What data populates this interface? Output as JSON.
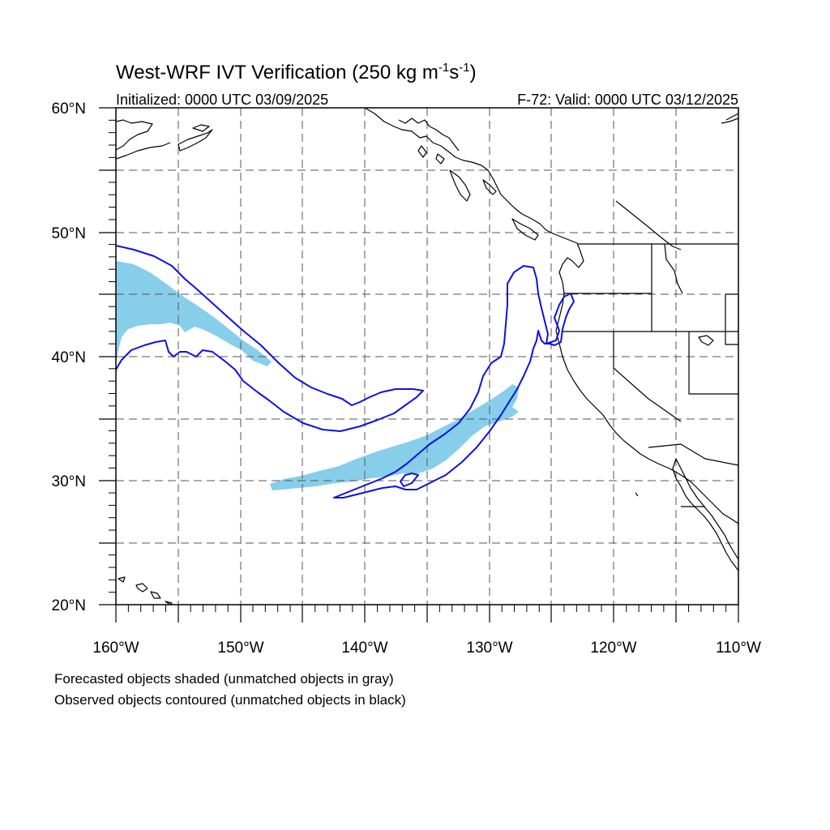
{
  "title": {
    "main": "West-WRF IVT Verification (250 kg m",
    "sup1": "-1",
    "mid": "s",
    "sup2": "-1",
    "end": ")"
  },
  "initialized": "Initialized: 0000 UTC 03/09/2025",
  "valid": "F-72: Valid: 0000 UTC 03/12/2025",
  "lat_labels": [
    "60°N",
    "50°N",
    "40°N",
    "30°N",
    "20°N"
  ],
  "lon_labels": [
    "160°W",
    "150°W",
    "140°W",
    "130°W",
    "120°W",
    "110°W"
  ],
  "legend": {
    "forecast": "Forecasted objects shaded (unmatched objects in gray)",
    "observed": "Observed objects contoured (unmatched objects in black)"
  },
  "colors": {
    "forecast_fill": "#87ceeb",
    "observed_contour": "#1010e0",
    "coast": "#000000",
    "grid": "#555555"
  },
  "map": {
    "lat_range": [
      20,
      60
    ],
    "lon_range": [
      -160,
      -110
    ],
    "grid_spacing_deg": 5,
    "grid_style": "dashed"
  }
}
